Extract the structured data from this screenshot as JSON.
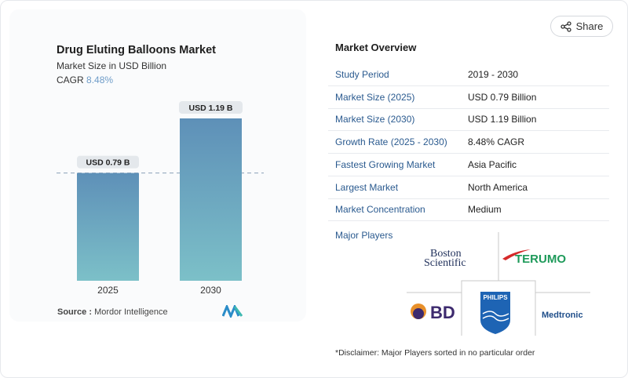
{
  "share": {
    "label": "Share",
    "icon": "share-icon"
  },
  "left": {
    "title": "Drug Eluting Balloons Market",
    "subtitle": "Market Size in USD Billion",
    "cagr_label": "CAGR",
    "cagr_value": "8.48%",
    "source_label": "Source :",
    "source_value": "Mordor Intelligence"
  },
  "chart_data": {
    "type": "bar",
    "title": "Drug Eluting Balloons Market",
    "ylabel": "Market Size in USD Billion",
    "categories": [
      "2025",
      "2030"
    ],
    "values": [
      0.79,
      1.19
    ],
    "data_labels": [
      "USD 0.79 B",
      "USD 1.19 B"
    ],
    "ylim": [
      0,
      1.4
    ],
    "colors": {
      "bar_top": "#5e90b8",
      "bar_bottom": "#7cc0c8"
    },
    "reference_line": 0.79
  },
  "overview": {
    "title": "Market Overview",
    "rows": [
      {
        "key": "Study Period",
        "value": "2019 - 2030"
      },
      {
        "key": "Market Size (2025)",
        "value": "USD 0.79 Billion"
      },
      {
        "key": "Market Size (2030)",
        "value": "USD 1.19 Billion"
      },
      {
        "key": "Growth Rate (2025 - 2030)",
        "value": "8.48% CAGR"
      },
      {
        "key": "Fastest Growing Market",
        "value": "Asia Pacific"
      },
      {
        "key": "Largest Market",
        "value": "North America"
      },
      {
        "key": "Market Concentration",
        "value": "Medium"
      }
    ],
    "major_players_label": "Major Players",
    "players": [
      "Boston Scientific",
      "TERUMO",
      "BD",
      "PHILIPS",
      "Medtronic"
    ],
    "disclaimer": "*Disclaimer: Major Players sorted in no particular order"
  }
}
